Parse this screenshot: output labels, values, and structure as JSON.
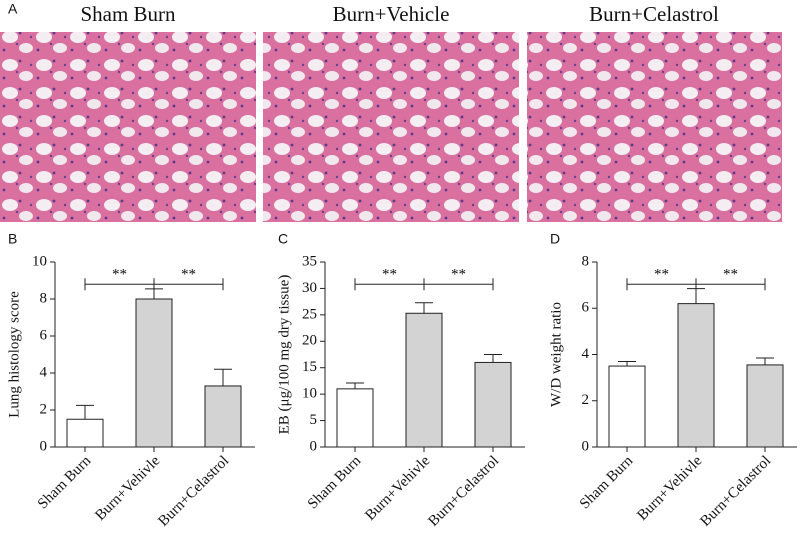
{
  "images": {
    "label": "A",
    "titles": [
      "Sham Burn",
      "Burn+Vehicle",
      "Burn+Celastrol"
    ]
  },
  "chart_data": [
    {
      "type": "bar",
      "label": "B",
      "ylabel": "Lung histology score",
      "categories": [
        "Sham Burn",
        "Burn+Vehivle",
        "Burn+Celastrol"
      ],
      "values": [
        1.5,
        8.0,
        3.3
      ],
      "errors": [
        0.75,
        0.55,
        0.9
      ],
      "colors": [
        "#ffffff",
        "#d3d3d3",
        "#d3d3d3"
      ],
      "ylim": [
        0,
        10
      ],
      "yticks": [
        0,
        2,
        4,
        6,
        8,
        10
      ],
      "annotations": [
        "**",
        "**"
      ]
    },
    {
      "type": "bar",
      "label": "C",
      "ylabel": "EB (μg/100 mg dry tissue)",
      "categories": [
        "Sham Burn",
        "Burn+Vehivle",
        "Burn+Celastrol"
      ],
      "values": [
        11.0,
        25.3,
        16.0
      ],
      "errors": [
        1.1,
        2.0,
        1.5
      ],
      "colors": [
        "#ffffff",
        "#d3d3d3",
        "#d3d3d3"
      ],
      "ylim": [
        0,
        35
      ],
      "yticks": [
        0,
        5,
        10,
        15,
        20,
        25,
        30,
        35
      ],
      "annotations": [
        "**",
        "**"
      ]
    },
    {
      "type": "bar",
      "label": "D",
      "ylabel": "W/D weight ratio",
      "categories": [
        "Sham Burn",
        "Burn+Vehivle",
        "Burn+Celastrol"
      ],
      "values": [
        3.5,
        6.2,
        3.55
      ],
      "errors": [
        0.2,
        0.65,
        0.3
      ],
      "colors": [
        "#ffffff",
        "#d3d3d3",
        "#d3d3d3"
      ],
      "ylim": [
        0,
        8
      ],
      "yticks": [
        0,
        2,
        4,
        6,
        8
      ],
      "annotations": [
        "**",
        "**"
      ]
    }
  ]
}
